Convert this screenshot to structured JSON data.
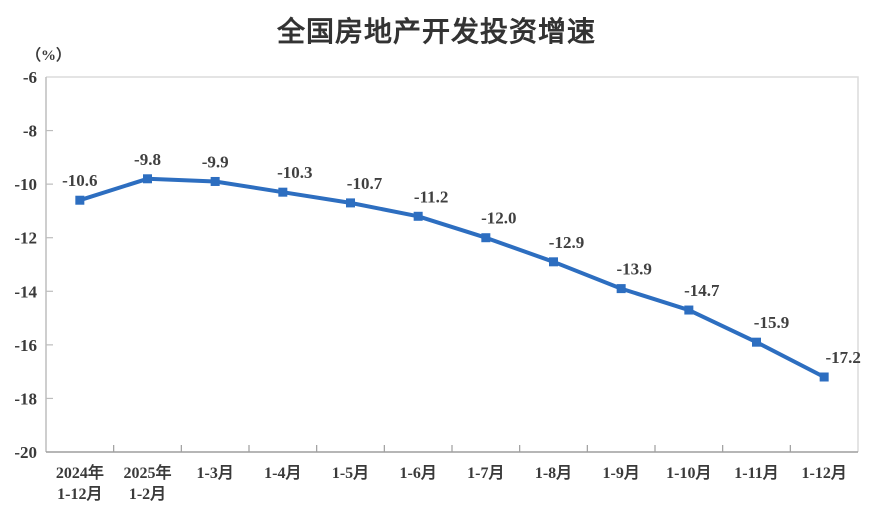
{
  "page": {
    "background_color": "#ffffff"
  },
  "chart_data": {
    "type": "line",
    "title": "全国房地产开发投资增速",
    "unit_label": "（%）",
    "series_name": "全国房地产开发投资增速",
    "categories": [
      "2024年\n1-12月",
      "2025年\n1-2月",
      "1-3月",
      "1-4月",
      "1-5月",
      "1-6月",
      "1-7月",
      "1-8月",
      "1-9月",
      "1-10月",
      "1-11月",
      "1-12月"
    ],
    "values": [
      -10.6,
      -9.8,
      -9.9,
      -10.3,
      -10.7,
      -11.2,
      -12.0,
      -12.9,
      -13.9,
      -14.7,
      -15.9,
      -17.2
    ],
    "data_labels": [
      "-10.6",
      "-9.8",
      "-9.9",
      "-10.3",
      "-10.7",
      "-11.2",
      "-12.0",
      "-12.9",
      "-13.9",
      "-14.7",
      "-15.9",
      "-17.2"
    ],
    "ylim": [
      -20,
      -6
    ],
    "yticks": [
      -6,
      -8,
      -10,
      -12,
      -14,
      -16,
      -18,
      -20
    ],
    "grid": "off",
    "legend": "none",
    "line_color": "#2D6EC0",
    "marker": "square",
    "title_color": "#333333",
    "text_color": "#3a3a3a",
    "plot_border_color": "#dcdcdc",
    "y_axis_color": "#bdbdbd",
    "x_axis_color": "#9e9e9e"
  }
}
